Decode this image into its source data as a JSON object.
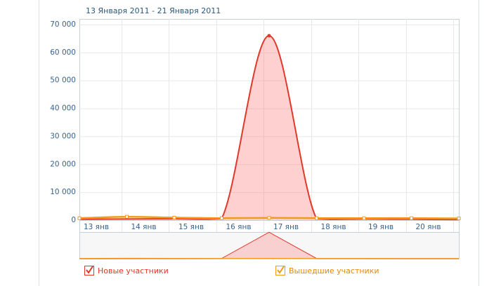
{
  "chart_data": {
    "type": "line",
    "title": "13 Января 2011 - 21 Января 2011",
    "categories": [
      "13 янв",
      "14 янв",
      "15 янв",
      "16 янв",
      "17 янв",
      "18 янв",
      "19 янв",
      "20 янв",
      null
    ],
    "series": [
      {
        "name": "Новые участники",
        "color": "#e0392a",
        "values": [
          300,
          400,
          500,
          600,
          66000,
          500,
          400,
          300,
          200
        ]
      },
      {
        "name": "Вышедшие участники",
        "color": "#f39a1e",
        "values": [
          700,
          1200,
          900,
          700,
          800,
          700,
          700,
          700,
          600
        ]
      }
    ],
    "ylim": [
      0,
      70000
    ],
    "yticks": [
      0,
      {
        "value": 10000,
        "label": "10 000"
      },
      {
        "value": 20000,
        "label": "20 000"
      },
      {
        "value": 30000,
        "label": "30 000"
      },
      {
        "value": 40000,
        "label": "40 000"
      },
      {
        "value": 50000,
        "label": "50 000"
      },
      {
        "value": 60000,
        "label": "60 000"
      },
      {
        "value": 70000,
        "label": "70 000"
      }
    ],
    "grid": true
  }
}
